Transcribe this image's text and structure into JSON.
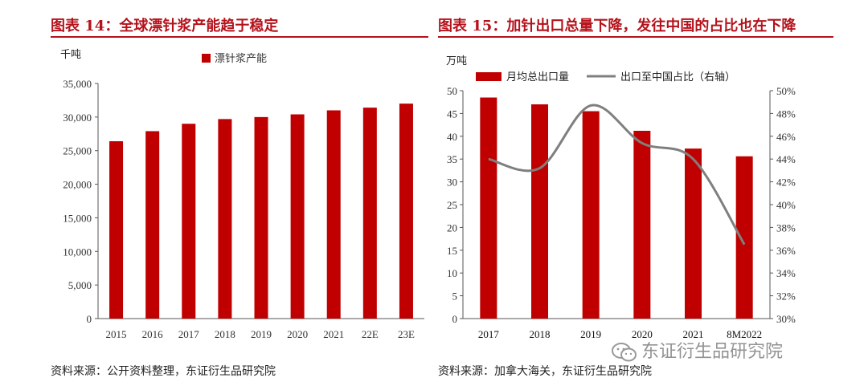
{
  "left_figure": {
    "title": "图表 14：全球漂针浆产能趋于稳定",
    "source": "资料来源：公开资料整理，东证衍生品研究院"
  },
  "right_figure": {
    "title": "图表 15：加针出口总量下降，发往中国的占比也在下降",
    "source": "资料来源：加拿大海关，东证衍生品研究院"
  },
  "watermark": {
    "icon": "wechat-icon",
    "text": "东证衍生品研究院"
  },
  "chart_data": [
    {
      "type": "bar",
      "unit_label": "千吨",
      "categories": [
        "2015",
        "2016",
        "2017",
        "2018",
        "2019",
        "2020",
        "2021",
        "22E",
        "23E"
      ],
      "series": [
        {
          "name": "漂针浆产能",
          "values": [
            26400,
            27900,
            29000,
            29700,
            30000,
            30400,
            31000,
            31400,
            32000
          ],
          "color": "#c00000"
        }
      ],
      "ylim": [
        0,
        35000
      ],
      "yticks": [
        "0",
        "5,000",
        "10,000",
        "15,000",
        "20,000",
        "25,000",
        "30,000",
        "35,000"
      ],
      "legend": "top-center",
      "grid": false
    },
    {
      "type": "bar+line",
      "unit_label": "万吨",
      "categories": [
        "2017",
        "2018",
        "2019",
        "2020",
        "2021",
        "8M2022"
      ],
      "series": [
        {
          "name": "月均总出口量",
          "type": "bar",
          "axis": "left",
          "values": [
            48.5,
            47,
            45.5,
            41.2,
            37.3,
            35.6
          ],
          "color": "#c00000"
        },
        {
          "name": "出口至中国占比（右轴）",
          "type": "line",
          "axis": "right",
          "values": [
            44.0,
            43.2,
            48.7,
            45.4,
            44.0,
            36.5
          ],
          "color": "#7f7f7f"
        }
      ],
      "ylim": [
        0,
        50
      ],
      "yticks": [
        "0",
        "5",
        "10",
        "15",
        "20",
        "25",
        "30",
        "35",
        "40",
        "45",
        "50"
      ],
      "y2lim": [
        30,
        50
      ],
      "y2ticks": [
        "30%",
        "32%",
        "34%",
        "36%",
        "38%",
        "40%",
        "42%",
        "44%",
        "46%",
        "48%",
        "50%"
      ],
      "legend": "top",
      "grid": false
    }
  ]
}
